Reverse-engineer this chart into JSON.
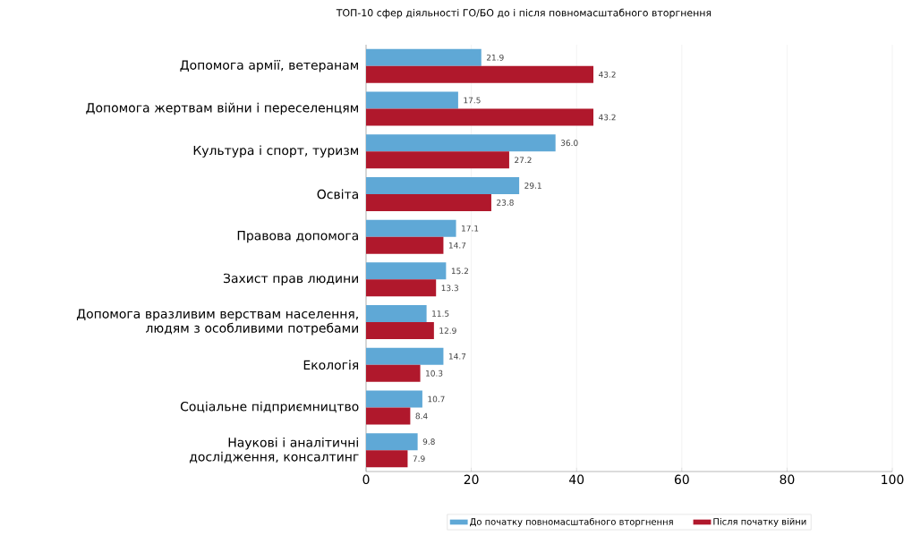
{
  "chart_data": {
    "type": "bar",
    "orientation": "horizontal",
    "title": "ТОП-10 сфер діяльності ГО/БО до і після повномасштабного вторгнення",
    "categories": [
      "Допомога армії, ветеранам",
      "Допомога жертвам війни і переселенцям",
      "Культура і спорт, туризм",
      "Освіта",
      "Правова допомога",
      "Захист прав людини",
      "Допомога вразливим верствам населення, людям з особливими потребами",
      "Екологія",
      "Соціальне підприємництво",
      "Наукові і аналітичні дослідження, консалтинг"
    ],
    "series": [
      {
        "name": "До початку повномасштабного вторгнення",
        "color": "#5fa8d6",
        "values": [
          21.9,
          17.5,
          36.0,
          29.1,
          17.1,
          15.2,
          11.5,
          14.7,
          10.7,
          9.8
        ],
        "value_labels": [
          "21.9",
          "17.5",
          "36.0",
          "29.1",
          "17.1",
          "15.2",
          "11.5",
          "14.7",
          "10.7",
          "9.8"
        ]
      },
      {
        "name": "Після початку війни",
        "color": "#b0182c",
        "values": [
          43.2,
          43.2,
          27.2,
          23.8,
          14.7,
          13.3,
          12.9,
          10.3,
          8.4,
          7.9
        ],
        "value_labels": [
          "43.2",
          "43.2",
          "27.2",
          "23.8",
          "14.7",
          "13.3",
          "12.9",
          "10.3",
          "8.4",
          "7.9"
        ]
      }
    ],
    "xlim": [
      0,
      100
    ],
    "xticks": [
      0,
      20,
      40,
      60,
      80,
      100
    ],
    "grid": "x",
    "legend": "bottom"
  }
}
